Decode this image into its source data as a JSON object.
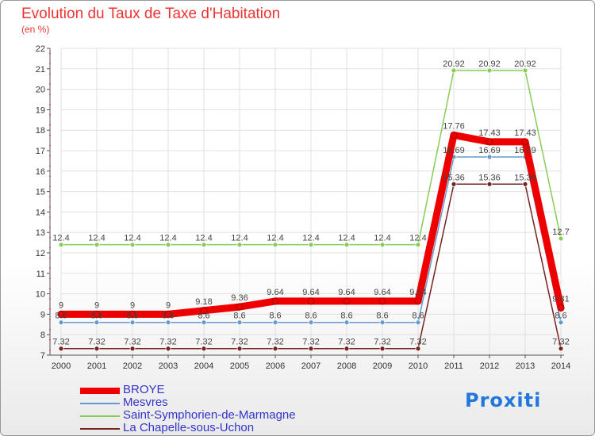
{
  "chart_data": {
    "type": "line",
    "title": "Evolution du Taux de Taxe d'Habitation",
    "subtitle": "(en %)",
    "xlabel": "",
    "ylabel": "",
    "x": [
      "2000",
      "2001",
      "2002",
      "2003",
      "2004",
      "2005",
      "2006",
      "2007",
      "2008",
      "2009",
      "2010",
      "2011",
      "2012",
      "2013",
      "2014"
    ],
    "ylim": [
      7,
      22
    ],
    "yticks": [
      "7",
      "8",
      "9",
      "10",
      "11",
      "12",
      "13",
      "14",
      "15",
      "16",
      "17",
      "18",
      "19",
      "20",
      "21",
      "22"
    ],
    "grid": true,
    "legend_position": "bottom-left",
    "series": [
      {
        "name": "BROYE",
        "color": "#ee0000",
        "values": [
          9,
          9,
          9,
          9,
          9.18,
          9.36,
          9.64,
          9.64,
          9.64,
          9.64,
          9.64,
          17.76,
          17.43,
          17.43,
          9.31
        ],
        "labels": [
          "9",
          "9",
          "9",
          "9",
          "9.18",
          "9.36",
          "9.64",
          "9.64",
          "9.64",
          "9.64",
          "9.64",
          "17.76",
          "17.43",
          "17.43",
          "9.31"
        ]
      },
      {
        "name": "Mesvres",
        "color": "#6699cc",
        "values": [
          8.6,
          8.6,
          8.6,
          8.6,
          8.6,
          8.6,
          8.6,
          8.6,
          8.6,
          8.6,
          8.6,
          16.69,
          16.69,
          16.69,
          8.6
        ],
        "labels": [
          "8.6",
          "8.6",
          "8.6",
          "8.6",
          "8.6",
          "8.6",
          "8.6",
          "8.6",
          "8.6",
          "8.6",
          "8.6",
          "16.69",
          "16.69",
          "16.69",
          "8.6"
        ]
      },
      {
        "name": "Saint-Symphorien-de-Marmagne",
        "color": "#88cc55",
        "values": [
          12.4,
          12.4,
          12.4,
          12.4,
          12.4,
          12.4,
          12.4,
          12.4,
          12.4,
          12.4,
          12.4,
          20.92,
          20.92,
          20.92,
          12.7
        ],
        "labels": [
          "12.4",
          "12.4",
          "12.4",
          "12.4",
          "12.4",
          "12.4",
          "12.4",
          "12.4",
          "12.4",
          "12.4",
          "12.4",
          "20.92",
          "20.92",
          "20.92",
          "12.7"
        ]
      },
      {
        "name": "La Chapelle-sous-Uchon",
        "color": "#772222",
        "values": [
          7.32,
          7.32,
          7.32,
          7.32,
          7.32,
          7.32,
          7.32,
          7.32,
          7.32,
          7.32,
          7.32,
          15.36,
          15.36,
          15.36,
          7.32
        ],
        "labels": [
          "7.32",
          "7.32",
          "7.32",
          "7.32",
          "7.32",
          "7.32",
          "7.32",
          "7.32",
          "7.32",
          "7.32",
          "7.32",
          "15.36",
          "15.36",
          "15.36",
          "7.32"
        ]
      }
    ]
  },
  "brand": {
    "text": "Proxiti"
  }
}
